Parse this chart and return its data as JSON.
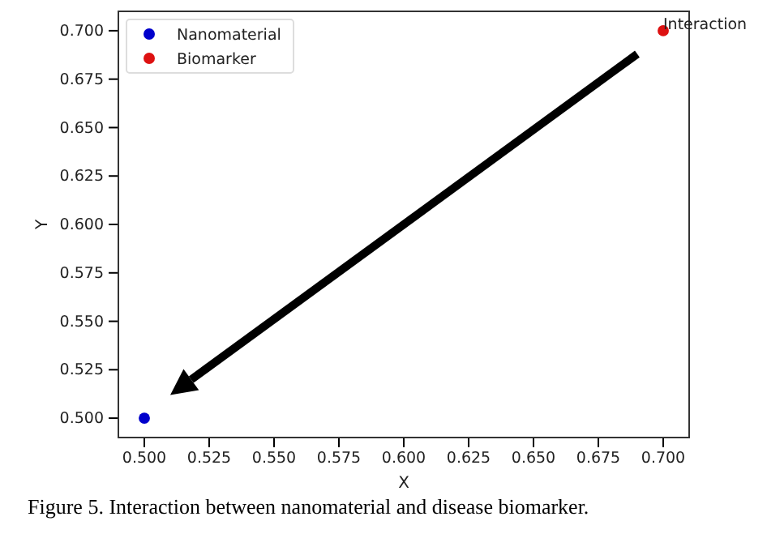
{
  "chart_data": {
    "type": "scatter",
    "xlabel": "X",
    "ylabel": "Y",
    "series": [
      {
        "name": "Nanomaterial",
        "color": "#0000cc",
        "x": [
          0.5
        ],
        "values": [
          0.5
        ]
      },
      {
        "name": "Biomarker",
        "color": "#dd1111",
        "x": [
          0.7
        ],
        "values": [
          0.7
        ]
      }
    ],
    "xlim": [
      0.49,
      0.71
    ],
    "ylim": [
      0.49,
      0.71
    ],
    "xticks": [
      {
        "value": 0.5,
        "label": "0.500"
      },
      0.525,
      {
        "value": 0.55,
        "label": "0.550"
      },
      0.575,
      {
        "value": 0.6,
        "label": "0.600"
      },
      0.625,
      {
        "value": 0.65,
        "label": "0.650"
      },
      0.675,
      {
        "value": 0.7,
        "label": "0.700"
      }
    ],
    "yticks": [
      {
        "value": 0.5,
        "label": "0.500"
      },
      0.525,
      {
        "value": 0.55,
        "label": "0.550"
      },
      0.575,
      {
        "value": 0.6,
        "label": "0.600"
      },
      0.625,
      {
        "value": 0.65,
        "label": "0.650"
      },
      0.675,
      {
        "value": 0.7,
        "label": "0.700"
      }
    ],
    "grid": false,
    "legend": "top left",
    "marker": "circle",
    "annotations": [
      {
        "text": "Interaction",
        "x": 0.7,
        "y": 0.7
      },
      "Figure 5. Interaction between nanomaterial and disease biomarker."
    ]
  }
}
